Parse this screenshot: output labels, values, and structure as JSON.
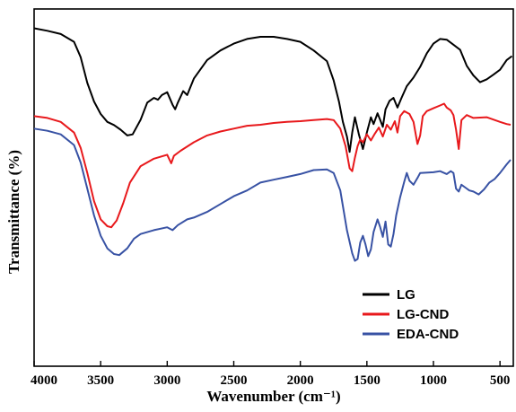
{
  "chart_data": {
    "type": "line",
    "xlabel": "Wavenumber (cm⁻¹)",
    "ylabel": "Transmittance (%)",
    "xlim": [
      4000,
      400
    ],
    "x_reversed": true,
    "xticks": [
      4000,
      3500,
      3000,
      2500,
      2000,
      1500,
      1000,
      500
    ],
    "ylim": [
      0,
      100
    ],
    "y_tick_labels": false,
    "grid": false,
    "legend_position": "bottom-right",
    "series": [
      {
        "name": "LG",
        "color": "#000000",
        "points": [
          [
            4000,
            94.6
          ],
          [
            3900,
            93.9
          ],
          [
            3800,
            93.0
          ],
          [
            3700,
            90.8
          ],
          [
            3650,
            86.5
          ],
          [
            3600,
            79.3
          ],
          [
            3550,
            74.1
          ],
          [
            3500,
            70.6
          ],
          [
            3450,
            68.4
          ],
          [
            3400,
            67.5
          ],
          [
            3350,
            66.2
          ],
          [
            3300,
            64.6
          ],
          [
            3260,
            64.9
          ],
          [
            3200,
            69.0
          ],
          [
            3150,
            73.8
          ],
          [
            3100,
            75.1
          ],
          [
            3070,
            74.6
          ],
          [
            3040,
            75.9
          ],
          [
            3000,
            76.7
          ],
          [
            2960,
            73.2
          ],
          [
            2940,
            71.9
          ],
          [
            2920,
            73.8
          ],
          [
            2880,
            77.0
          ],
          [
            2850,
            75.9
          ],
          [
            2800,
            80.5
          ],
          [
            2700,
            85.7
          ],
          [
            2600,
            88.4
          ],
          [
            2500,
            90.3
          ],
          [
            2400,
            91.6
          ],
          [
            2300,
            92.2
          ],
          [
            2200,
            92.2
          ],
          [
            2100,
            91.6
          ],
          [
            2000,
            90.8
          ],
          [
            1900,
            88.4
          ],
          [
            1800,
            85.4
          ],
          [
            1750,
            80.0
          ],
          [
            1710,
            74.1
          ],
          [
            1680,
            68.4
          ],
          [
            1650,
            64.3
          ],
          [
            1630,
            60.0
          ],
          [
            1610,
            65.4
          ],
          [
            1590,
            69.7
          ],
          [
            1560,
            64.9
          ],
          [
            1530,
            60.8
          ],
          [
            1500,
            65.4
          ],
          [
            1470,
            69.7
          ],
          [
            1450,
            67.8
          ],
          [
            1420,
            70.8
          ],
          [
            1400,
            68.9
          ],
          [
            1380,
            67.0
          ],
          [
            1360,
            71.9
          ],
          [
            1330,
            74.3
          ],
          [
            1300,
            75.1
          ],
          [
            1270,
            72.4
          ],
          [
            1240,
            75.1
          ],
          [
            1200,
            78.4
          ],
          [
            1150,
            80.8
          ],
          [
            1100,
            83.8
          ],
          [
            1050,
            87.6
          ],
          [
            1000,
            90.3
          ],
          [
            950,
            91.6
          ],
          [
            900,
            91.4
          ],
          [
            850,
            90.0
          ],
          [
            800,
            88.6
          ],
          [
            750,
            84.1
          ],
          [
            700,
            81.4
          ],
          [
            650,
            79.5
          ],
          [
            600,
            80.3
          ],
          [
            550,
            81.6
          ],
          [
            500,
            83.0
          ],
          [
            450,
            85.7
          ],
          [
            410,
            86.8
          ]
        ]
      },
      {
        "name": "LG-CND",
        "color": "#e8191c",
        "points": [
          [
            4000,
            70.0
          ],
          [
            3900,
            69.5
          ],
          [
            3800,
            68.4
          ],
          [
            3700,
            65.4
          ],
          [
            3650,
            61.1
          ],
          [
            3600,
            54.1
          ],
          [
            3550,
            46.2
          ],
          [
            3500,
            41.1
          ],
          [
            3450,
            39.2
          ],
          [
            3420,
            38.9
          ],
          [
            3380,
            40.8
          ],
          [
            3330,
            45.7
          ],
          [
            3280,
            51.4
          ],
          [
            3200,
            56.0
          ],
          [
            3100,
            58.1
          ],
          [
            3000,
            59.2
          ],
          [
            2970,
            56.8
          ],
          [
            2950,
            58.9
          ],
          [
            2900,
            60.3
          ],
          [
            2800,
            62.7
          ],
          [
            2700,
            64.6
          ],
          [
            2600,
            65.7
          ],
          [
            2500,
            66.5
          ],
          [
            2400,
            67.3
          ],
          [
            2300,
            67.6
          ],
          [
            2200,
            68.1
          ],
          [
            2100,
            68.4
          ],
          [
            2000,
            68.6
          ],
          [
            1900,
            68.9
          ],
          [
            1800,
            69.2
          ],
          [
            1750,
            68.9
          ],
          [
            1700,
            66.5
          ],
          [
            1660,
            61.6
          ],
          [
            1630,
            55.4
          ],
          [
            1610,
            54.6
          ],
          [
            1590,
            58.4
          ],
          [
            1570,
            61.6
          ],
          [
            1550,
            63.5
          ],
          [
            1530,
            62.7
          ],
          [
            1500,
            64.9
          ],
          [
            1470,
            63.2
          ],
          [
            1440,
            65.1
          ],
          [
            1410,
            66.8
          ],
          [
            1380,
            64.3
          ],
          [
            1350,
            67.6
          ],
          [
            1320,
            66.2
          ],
          [
            1290,
            68.6
          ],
          [
            1270,
            65.4
          ],
          [
            1250,
            70.0
          ],
          [
            1220,
            71.4
          ],
          [
            1180,
            70.6
          ],
          [
            1150,
            68.4
          ],
          [
            1120,
            62.2
          ],
          [
            1100,
            64.6
          ],
          [
            1080,
            70.0
          ],
          [
            1050,
            71.4
          ],
          [
            1000,
            72.2
          ],
          [
            950,
            73.0
          ],
          [
            920,
            73.5
          ],
          [
            900,
            72.4
          ],
          [
            870,
            71.6
          ],
          [
            850,
            70.3
          ],
          [
            830,
            66.2
          ],
          [
            810,
            60.8
          ],
          [
            790,
            68.9
          ],
          [
            750,
            70.3
          ],
          [
            700,
            69.5
          ],
          [
            600,
            69.7
          ],
          [
            500,
            68.4
          ],
          [
            450,
            67.8
          ],
          [
            420,
            67.6
          ]
        ]
      },
      {
        "name": "EDA-CND",
        "color": "#3852a4",
        "points": [
          [
            4000,
            66.5
          ],
          [
            3900,
            65.9
          ],
          [
            3800,
            64.9
          ],
          [
            3700,
            61.9
          ],
          [
            3650,
            57.0
          ],
          [
            3600,
            49.7
          ],
          [
            3550,
            42.2
          ],
          [
            3500,
            36.5
          ],
          [
            3450,
            33.0
          ],
          [
            3400,
            31.4
          ],
          [
            3360,
            31.1
          ],
          [
            3300,
            33.0
          ],
          [
            3250,
            35.7
          ],
          [
            3200,
            37.0
          ],
          [
            3100,
            38.1
          ],
          [
            3000,
            38.9
          ],
          [
            2960,
            38.1
          ],
          [
            2920,
            39.5
          ],
          [
            2850,
            41.1
          ],
          [
            2800,
            41.6
          ],
          [
            2700,
            43.2
          ],
          [
            2600,
            45.4
          ],
          [
            2500,
            47.6
          ],
          [
            2400,
            49.2
          ],
          [
            2300,
            51.4
          ],
          [
            2200,
            52.2
          ],
          [
            2100,
            53.0
          ],
          [
            2000,
            53.8
          ],
          [
            1900,
            54.9
          ],
          [
            1800,
            55.1
          ],
          [
            1750,
            54.1
          ],
          [
            1700,
            49.2
          ],
          [
            1650,
            38.1
          ],
          [
            1610,
            31.6
          ],
          [
            1590,
            29.5
          ],
          [
            1570,
            30.0
          ],
          [
            1550,
            34.6
          ],
          [
            1530,
            36.5
          ],
          [
            1510,
            34.1
          ],
          [
            1490,
            30.8
          ],
          [
            1470,
            32.7
          ],
          [
            1450,
            37.6
          ],
          [
            1420,
            41.1
          ],
          [
            1400,
            38.9
          ],
          [
            1380,
            36.2
          ],
          [
            1360,
            40.5
          ],
          [
            1340,
            34.1
          ],
          [
            1320,
            33.5
          ],
          [
            1300,
            37.0
          ],
          [
            1280,
            42.2
          ],
          [
            1250,
            47.3
          ],
          [
            1220,
            51.6
          ],
          [
            1200,
            54.1
          ],
          [
            1180,
            51.9
          ],
          [
            1150,
            50.8
          ],
          [
            1120,
            52.7
          ],
          [
            1100,
            54.1
          ],
          [
            1000,
            54.3
          ],
          [
            950,
            54.6
          ],
          [
            900,
            53.8
          ],
          [
            870,
            54.6
          ],
          [
            850,
            54.1
          ],
          [
            830,
            49.7
          ],
          [
            810,
            48.9
          ],
          [
            790,
            50.8
          ],
          [
            760,
            50.0
          ],
          [
            730,
            49.2
          ],
          [
            700,
            48.9
          ],
          [
            660,
            48.1
          ],
          [
            620,
            49.5
          ],
          [
            580,
            51.4
          ],
          [
            540,
            52.4
          ],
          [
            500,
            54.1
          ],
          [
            450,
            56.5
          ],
          [
            420,
            57.8
          ]
        ]
      }
    ]
  }
}
